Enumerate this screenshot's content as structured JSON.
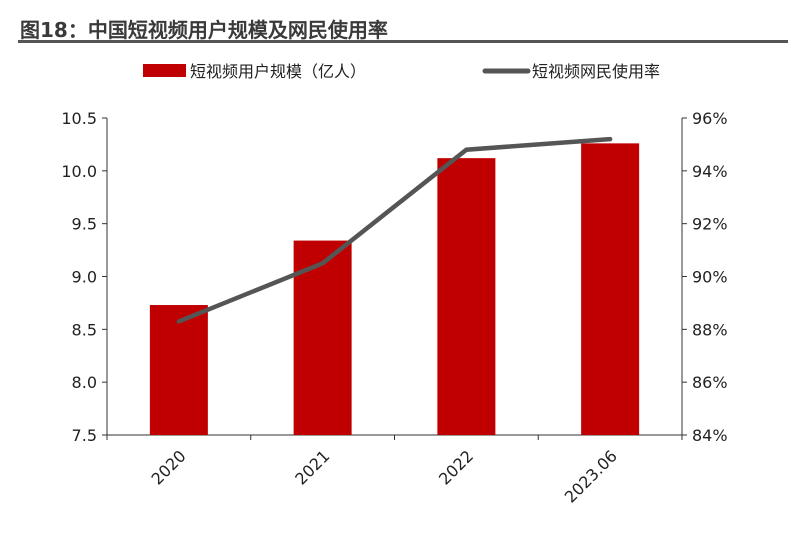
{
  "chart_data": {
    "type": "bar+line",
    "title": "图18：中国短视频用户规模及网民使用率",
    "categories": [
      "2020",
      "2021",
      "2022",
      "2023.06"
    ],
    "series": [
      {
        "name": "短视频用户规模（亿人）",
        "type": "bar",
        "axis": "left",
        "color": "#c00000",
        "values": [
          8.73,
          9.34,
          10.12,
          10.26
        ]
      },
      {
        "name": "短视频网民使用率",
        "type": "line",
        "axis": "right",
        "color": "#555555",
        "values": [
          88.3,
          90.5,
          94.8,
          95.2
        ]
      }
    ],
    "y_left": {
      "range": [
        7.5,
        10.5
      ],
      "ticks": [
        "7.5",
        "8.0",
        "8.5",
        "9.0",
        "9.5",
        "10.0",
        "10.5"
      ]
    },
    "y_right": {
      "range": [
        84,
        96
      ],
      "ticks": [
        "84%",
        "86%",
        "88%",
        "90%",
        "92%",
        "94%",
        "96%"
      ]
    },
    "grid": false,
    "legend_position": "top"
  }
}
